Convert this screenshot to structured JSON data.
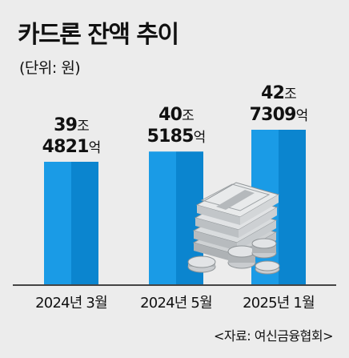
{
  "chart_data": {
    "type": "bar",
    "title": "카드론 잔액 추이",
    "subtitle": "(단위: 원)",
    "categories": [
      "2024년 3월",
      "2024년 5월",
      "2025년 1월"
    ],
    "values": [
      394821,
      405185,
      427309
    ],
    "value_labels": [
      {
        "jo": "39",
        "jo_unit": "조",
        "eok": "4821",
        "eok_unit": "억"
      },
      {
        "jo": "40",
        "jo_unit": "조",
        "eok": "5185",
        "eok_unit": "억"
      },
      {
        "jo": "42",
        "jo_unit": "조",
        "eok": "7309",
        "eok_unit": "억"
      }
    ],
    "bar_color": "#1a9be6",
    "bar_shade_color": "#0b85cf",
    "grid": false,
    "source": "<자료: 여신금융협회>"
  }
}
